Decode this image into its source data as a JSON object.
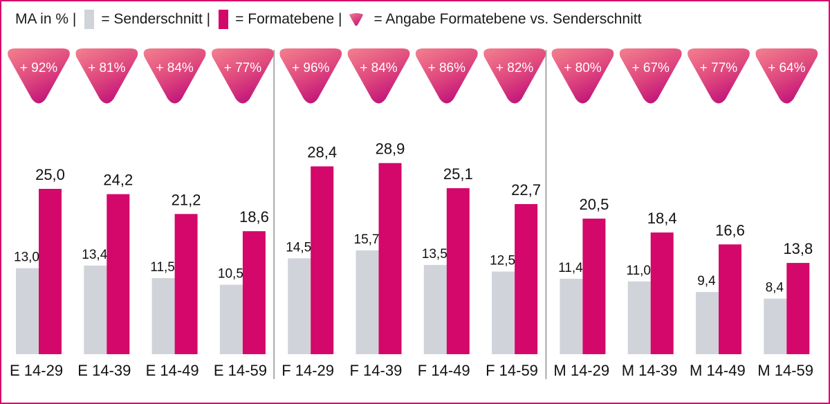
{
  "legend": {
    "prefix": "MA in % |",
    "senderschnitt": "= Senderschnitt |",
    "formatebene": "= Formatebene |",
    "angabe": "= Angabe Formatebene vs. Senderschnitt"
  },
  "colors": {
    "senderschnitt": "#d0d3da",
    "formatebene": "#d4076a",
    "frame": "#d4076a",
    "divider": "#a8a8a8"
  },
  "chart_data": {
    "type": "bar",
    "title": "",
    "ylabel": "MA in %",
    "ylim": [
      0,
      30
    ],
    "grid": false,
    "categories": [
      "E 14-29",
      "E 14-39",
      "E 14-49",
      "E 14-59",
      "F 14-29",
      "F 14-39",
      "F 14-49",
      "F 14-59",
      "M 14-29",
      "M 14-39",
      "M 14-49",
      "M 14-59"
    ],
    "series": [
      {
        "name": "Senderschnitt",
        "values": [
          13.0,
          13.4,
          11.5,
          10.5,
          14.5,
          15.7,
          13.5,
          12.5,
          11.4,
          11.0,
          9.4,
          8.4
        ],
        "labels": [
          "13,0",
          "13,4",
          "11,5",
          "10,5",
          "14,5",
          "15,7",
          "13,5",
          "12,5",
          "11,4",
          "11,0",
          "9,4",
          "8,4"
        ]
      },
      {
        "name": "Formatebene",
        "values": [
          25.0,
          24.2,
          21.2,
          18.6,
          28.4,
          28.9,
          25.1,
          22.7,
          20.5,
          18.4,
          16.6,
          13.8
        ],
        "labels": [
          "25,0",
          "24,2",
          "21,2",
          "18,6",
          "28,4",
          "28,9",
          "25,1",
          "22,7",
          "20,5",
          "18,4",
          "16,6",
          "13,8"
        ]
      }
    ],
    "badges": [
      "+ 92%",
      "+ 81%",
      "+ 84%",
      "+ 77%",
      "+ 96%",
      "+ 84%",
      "+ 86%",
      "+ 82%",
      "+ 80%",
      "+ 67%",
      "+ 77%",
      "+ 64%"
    ],
    "group_dividers_after": [
      4,
      8
    ]
  }
}
